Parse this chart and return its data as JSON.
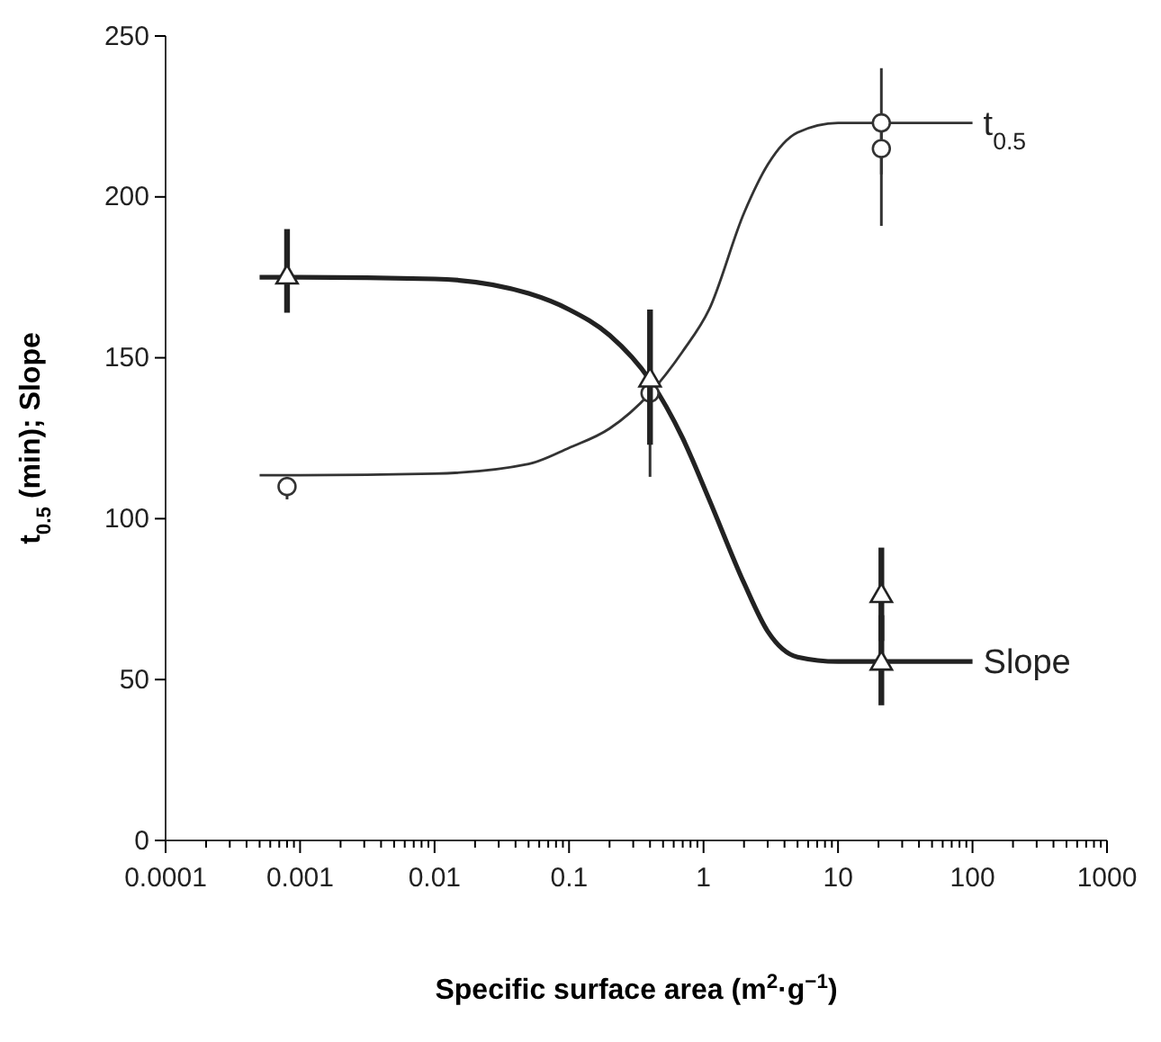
{
  "chart_data": {
    "type": "line",
    "xlabel": "Specific surface area (m$^{2}$·g$^{−1}$)",
    "ylabel": "t$_{0.5}$ (min); Slope",
    "log": "x",
    "grid": false,
    "legend": false,
    "xlim": [
      0.0001,
      1000
    ],
    "ylim": [
      0,
      250
    ],
    "yticks": [
      0,
      50,
      100,
      150,
      200,
      250
    ],
    "xticks": [
      {
        "value": 0.0001,
        "label": "0.0001"
      },
      {
        "value": 0.0002,
        "label": null
      },
      {
        "value": 0.0003,
        "label": null
      },
      {
        "value": 0.0004,
        "label": null
      },
      {
        "value": 0.0005,
        "label": null
      },
      {
        "value": 0.0006,
        "label": null
      },
      {
        "value": 0.0007,
        "label": null
      },
      {
        "value": 0.0008,
        "label": null
      },
      {
        "value": 0.0009,
        "label": null
      },
      {
        "value": 0.001,
        "label": "0.001"
      },
      {
        "value": 0.002,
        "label": null
      },
      {
        "value": 0.003,
        "label": null
      },
      {
        "value": 0.004,
        "label": null
      },
      {
        "value": 0.005,
        "label": null
      },
      {
        "value": 0.006,
        "label": null
      },
      {
        "value": 0.007,
        "label": null
      },
      {
        "value": 0.008,
        "label": null
      },
      {
        "value": 0.009,
        "label": null
      },
      {
        "value": 0.01,
        "label": "0.01"
      },
      {
        "value": 0.02,
        "label": null
      },
      {
        "value": 0.03,
        "label": null
      },
      {
        "value": 0.04,
        "label": null
      },
      {
        "value": 0.05,
        "label": null
      },
      {
        "value": 0.06,
        "label": null
      },
      {
        "value": 0.07,
        "label": null
      },
      {
        "value": 0.08,
        "label": null
      },
      {
        "value": 0.09,
        "label": null
      },
      {
        "value": 0.1,
        "label": "0.1"
      },
      {
        "value": 0.2,
        "label": null
      },
      {
        "value": 0.3,
        "label": null
      },
      {
        "value": 0.4,
        "label": null
      },
      {
        "value": 0.5,
        "label": null
      },
      {
        "value": 0.6,
        "label": null
      },
      {
        "value": 0.7,
        "label": null
      },
      {
        "value": 0.8,
        "label": null
      },
      {
        "value": 0.9,
        "label": null
      },
      {
        "value": 1,
        "label": "1"
      },
      {
        "value": 2,
        "label": null
      },
      {
        "value": 3,
        "label": null
      },
      {
        "value": 4,
        "label": null
      },
      {
        "value": 5,
        "label": null
      },
      {
        "value": 6,
        "label": null
      },
      {
        "value": 7,
        "label": null
      },
      {
        "value": 8,
        "label": null
      },
      {
        "value": 9,
        "label": null
      },
      {
        "value": 10,
        "label": "10"
      },
      {
        "value": 20,
        "label": null
      },
      {
        "value": 30,
        "label": null
      },
      {
        "value": 40,
        "label": null
      },
      {
        "value": 50,
        "label": null
      },
      {
        "value": 60,
        "label": null
      },
      {
        "value": 70,
        "label": null
      },
      {
        "value": 80,
        "label": null
      },
      {
        "value": 90,
        "label": null
      },
      {
        "value": 100,
        "label": "100"
      },
      {
        "value": 200,
        "label": null
      },
      {
        "value": 300,
        "label": null
      },
      {
        "value": 400,
        "label": null
      },
      {
        "value": 500,
        "label": null
      },
      {
        "value": 600,
        "label": null
      },
      {
        "value": 700,
        "label": null
      },
      {
        "value": 800,
        "label": null
      },
      {
        "value": 900,
        "label": null
      },
      {
        "value": 1000,
        "label": "1000"
      }
    ],
    "series": [
      {
        "name": "t$_{0.5}$",
        "color": "#333333",
        "marker": "none",
        "x": [
          0.0005,
          0.001,
          0.01,
          0.05,
          0.1,
          0.2,
          0.4,
          0.7,
          1.1,
          2,
          3,
          5,
          10,
          20,
          100
        ],
        "values": [
          113.5,
          113.5,
          114,
          117,
          122,
          128,
          139,
          152,
          165,
          195,
          210,
          220,
          223,
          223,
          223
        ]
      },
      {
        "name": "Slope",
        "color": "#222222",
        "marker": "none",
        "x": [
          0.0005,
          0.001,
          0.01,
          0.05,
          0.1,
          0.2,
          0.4,
          0.7,
          1.1,
          2,
          3,
          5,
          10,
          20,
          100
        ],
        "values": [
          175,
          175,
          174.5,
          170,
          165,
          157,
          143,
          125,
          106,
          80,
          65,
          57,
          55.6,
          55.6,
          55.6
        ]
      },
      {
        "type": "scatter",
        "color": "#333333",
        "marker": "circle",
        "x": [
          0.0008,
          0.4,
          21,
          21
        ],
        "values": [
          110,
          139,
          223,
          215
        ],
        "errors": [
          [
            106,
            113
          ],
          [
            113,
            165
          ],
          [
            207,
            240
          ],
          [
            191,
            223
          ]
        ]
      },
      {
        "type": "scatter",
        "color": "#222222",
        "marker": "triangle",
        "x": [
          0.0008,
          0.4,
          21,
          21
        ],
        "values": [
          175,
          143,
          55,
          76
        ],
        "errors": [
          [
            164,
            190
          ],
          [
            123,
            165
          ],
          [
            42,
            70
          ],
          [
            62,
            91
          ]
        ]
      }
    ]
  }
}
